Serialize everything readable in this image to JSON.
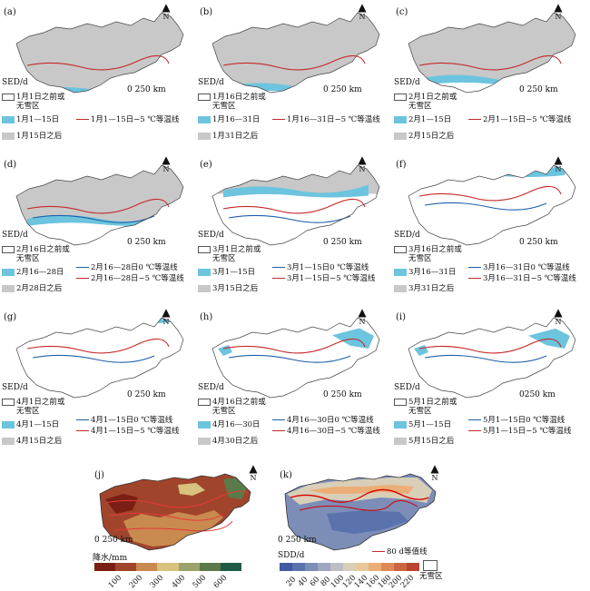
{
  "panels": [
    {
      "label": "(a)",
      "sed": "SED/d",
      "scale": "0 250 km",
      "legend": {
        "no_snow": "1月1日之前或无雪区",
        "blue": "1月1—15日",
        "gray": "1月15日之后",
        "line1": "1月1—15日−5 ℃等温线",
        "line2": ""
      }
    },
    {
      "label": "(b)",
      "sed": "SED/d",
      "scale": "0 250 km",
      "legend": {
        "no_snow": "1月16日之前或无雪区",
        "blue": "1月16—31日",
        "gray": "1月31日之后",
        "line1": "1月16—31日−5 ℃等温线",
        "line2": ""
      }
    },
    {
      "label": "(c)",
      "sed": "SED/d",
      "scale": "0 250 km",
      "legend": {
        "no_snow": "2月1日之前或无雪区",
        "blue": "2月1—15日",
        "gray": "2月15日之后",
        "line1": "2月1—15日−5 ℃等温线",
        "line2": ""
      }
    },
    {
      "label": "(d)",
      "sed": "SED/d",
      "scale": "0 250 km",
      "legend": {
        "no_snow": "2月16日之前或无雪区",
        "blue": "2月16—28日",
        "gray": "2月28日之后",
        "line1": "2月16—28日0 ℃等温线",
        "line2": "2月16—28日−5 ℃等温线"
      }
    },
    {
      "label": "(e)",
      "sed": "SED/d",
      "scale": "0 250 km",
      "legend": {
        "no_snow": "3月1日之前或无雪区",
        "blue": "3月1—15日",
        "gray": "3月15日之后",
        "line1": "3月1—15日0 ℃等温线",
        "line2": "3月1—15日−5 ℃等温线"
      }
    },
    {
      "label": "(f)",
      "sed": "SED/d",
      "scale": "0 250 km",
      "legend": {
        "no_snow": "3月16日之前或无雪区",
        "blue": "3月16—31日",
        "gray": "3月31日之后",
        "line1": "3月16—31日0 ℃等温线",
        "line2": "3月16—31日−5 ℃等温线"
      }
    },
    {
      "label": "(g)",
      "sed": "SED/d",
      "scale": "0 250 km",
      "legend": {
        "no_snow": "4月1日之前或无雪区",
        "blue": "4月1—15日",
        "gray": "4月15日之后",
        "line1": "4月1—15日0 ℃等温线",
        "line2": "4月1—15日−5 ℃等温线"
      }
    },
    {
      "label": "(h)",
      "sed": "SED/d",
      "scale": "0 250 km",
      "legend": {
        "no_snow": "4月16日之前或无雪区",
        "blue": "4月16—30日",
        "gray": "4月30日之后",
        "line1": "4月16—30日0 ℃等温线",
        "line2": "4月16—30日−5 ℃等温线"
      }
    },
    {
      "label": "(i)",
      "sed": "SED/d",
      "scale": "0250 km",
      "legend": {
        "no_snow": "5月1日之前或无雪区",
        "blue": "5月1—15日",
        "gray": "5月15日之后",
        "line1": "5月1—15日0 ℃等温线",
        "line2": "5月1—15日−5 ℃等温线"
      }
    }
  ],
  "panel_j": {
    "label": "(j)",
    "scale": "0 250 km",
    "colorbar_title": "降水/mm",
    "ticks": [
      "100",
      "200",
      "300",
      "400",
      "500",
      "600"
    ],
    "colors": [
      "#7b1f14",
      "#a0452b",
      "#c98a50",
      "#d8c27e",
      "#9aa36a",
      "#5a7a4a",
      "#1e5b45"
    ]
  },
  "panel_k": {
    "label": "(k)",
    "scale": "0 250 km",
    "colorbar_title": "SDD/d",
    "line_label": "80 d等值线",
    "no_snow": "无雪区",
    "ticks": [
      "20",
      "40",
      "60",
      "80",
      "100",
      "120",
      "140",
      "160",
      "180",
      "200",
      "220"
    ],
    "colors": [
      "#3f5aa0",
      "#5b73ad",
      "#7c8db8",
      "#9ea8c0",
      "#bcc0c4",
      "#d9cfb8",
      "#e8c79a",
      "#ebae77",
      "#df8a56",
      "#cd6640",
      "#b8452e"
    ]
  },
  "north_label": "N",
  "colors": {
    "blue": "#6cc4de",
    "gray": "#c8c8c8",
    "red": "#c62828",
    "darkblue": "#1f5fa8"
  }
}
